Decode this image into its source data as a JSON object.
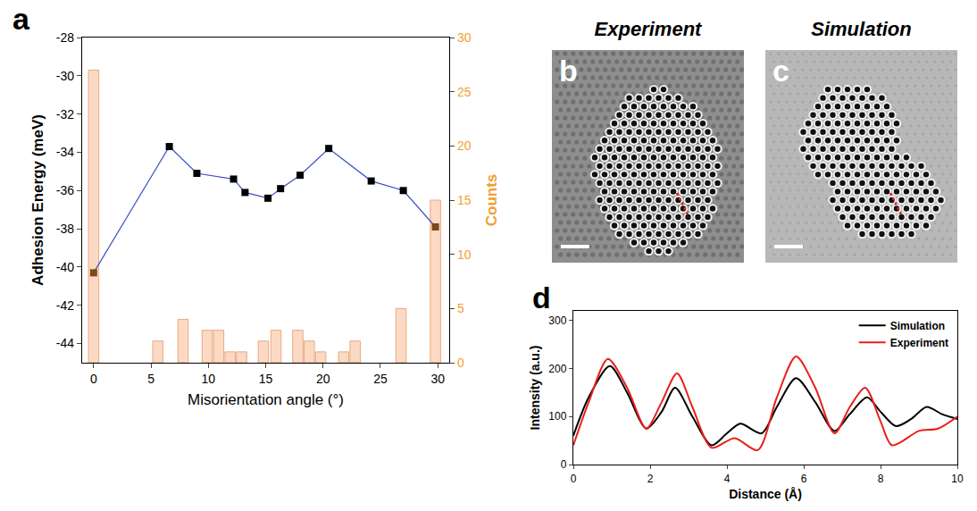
{
  "chart_data": [
    {
      "type": "combo",
      "annotations": [
        "a"
      ],
      "x_label": "Misorientation angle (°)",
      "y_label": "Adhesion Energy (meV)",
      "y2_label": "Counts",
      "xlim": [
        -1,
        31
      ],
      "xticks": [
        0,
        5,
        10,
        15,
        20,
        25,
        30
      ],
      "ylim": [
        -45,
        -28
      ],
      "yticks": [
        -44,
        -42,
        -40,
        -38,
        -36,
        -34,
        -32,
        -30,
        -28
      ],
      "y2lim": [
        0,
        30
      ],
      "y2ticks": [
        0,
        5,
        10,
        15,
        20,
        25,
        30
      ],
      "grid": false,
      "series": [
        {
          "type": "bar",
          "axis": "y2",
          "color": "#fcd9c2",
          "x": [
            0,
            5.6,
            7.8,
            9.9,
            10.9,
            11.9,
            12.9,
            14.8,
            15.9,
            17.8,
            18.8,
            19.8,
            21.8,
            22.8,
            26.8,
            29.8
          ],
          "values": [
            27,
            2,
            4,
            3,
            3,
            1,
            1,
            2,
            3,
            3,
            2,
            1,
            1,
            2,
            5,
            15
          ]
        },
        {
          "type": "line",
          "color": "#3a4fc4",
          "marker": "square",
          "x": [
            0,
            6.6,
            9,
            12.2,
            13.2,
            15.2,
            16.3,
            18,
            20.5,
            24.2,
            27,
            29.8
          ],
          "values": [
            -40.3,
            -33.7,
            -35.1,
            -35.4,
            -36.1,
            -36.4,
            -35.9,
            -35.2,
            -33.8,
            -35.5,
            -36.0,
            -37.9
          ],
          "colors": [
            "#7a4a1a",
            "#000000",
            "#000000",
            "#000000",
            "#000000",
            "#000000",
            "#000000",
            "#000000",
            "#000000",
            "#000000",
            "#000000",
            "#7a4a1a"
          ]
        }
      ]
    },
    {
      "type": "line",
      "annotations": [
        "d"
      ],
      "x_label": "Distance (Å)",
      "y_label": "Intensity (a.u.)",
      "xlim": [
        0,
        10
      ],
      "xticks": [
        0,
        2,
        4,
        6,
        8,
        10
      ],
      "ylim": [
        0,
        320
      ],
      "yticks": [
        0,
        100,
        200,
        300
      ],
      "grid": false,
      "legend": "upper right",
      "series": [
        {
          "name": "Simulation",
          "color": "#000000",
          "x": [
            0,
            0.4,
            0.95,
            1.4,
            1.9,
            2.3,
            2.65,
            3.1,
            3.6,
            4.0,
            4.35,
            4.9,
            5.3,
            5.8,
            6.3,
            6.8,
            7.2,
            7.65,
            8.0,
            8.4,
            8.8,
            9.2,
            9.6,
            10
          ],
          "values": [
            60,
            140,
            205,
            150,
            75,
            110,
            160,
            100,
            40,
            65,
            85,
            65,
            120,
            180,
            130,
            70,
            105,
            140,
            110,
            80,
            95,
            120,
            105,
            95
          ]
        },
        {
          "name": "Experiment",
          "color": "#e8201c",
          "x": [
            0,
            0.4,
            0.9,
            1.4,
            1.9,
            2.3,
            2.7,
            3.1,
            3.6,
            4.2,
            4.8,
            5.3,
            5.8,
            6.3,
            6.8,
            7.2,
            7.6,
            8.0,
            8.3,
            9.0,
            9.5,
            10
          ],
          "values": [
            40,
            130,
            220,
            160,
            75,
            130,
            190,
            120,
            35,
            55,
            30,
            140,
            225,
            160,
            65,
            120,
            160,
            90,
            40,
            70,
            75,
            100
          ]
        }
      ]
    }
  ],
  "images": [
    {
      "annotation": "b",
      "title": "Experiment"
    },
    {
      "annotation": "c",
      "title": "Simulation"
    }
  ]
}
